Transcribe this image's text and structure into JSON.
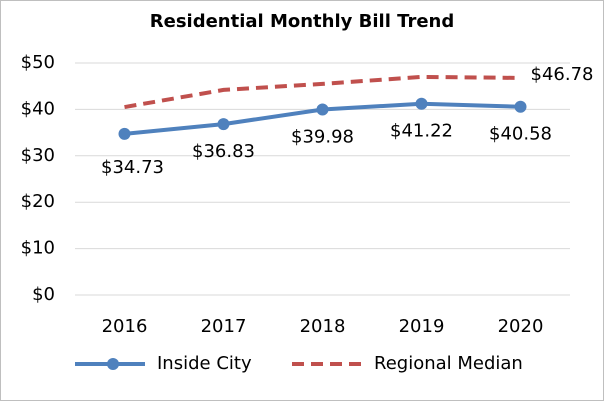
{
  "chart_data": {
    "type": "line",
    "title": "Residential Monthly Bill Trend",
    "categories": [
      "2016",
      "2017",
      "2018",
      "2019",
      "2020"
    ],
    "series": [
      {
        "name": "Inside City",
        "color": "#4f81bd",
        "values": [
          34.73,
          36.83,
          39.98,
          41.22,
          40.58
        ],
        "value_labels": [
          "$34.73",
          "$36.83",
          "$39.98",
          "$41.22",
          "$40.58"
        ],
        "marker": true,
        "dashed": false
      },
      {
        "name": "Regional Median",
        "color": "#c0504d",
        "values": [
          40.5,
          44.2,
          45.5,
          47.0,
          46.78
        ],
        "value_labels": [
          null,
          null,
          null,
          null,
          "$46.78"
        ],
        "marker": false,
        "dashed": true
      }
    ],
    "ylim": [
      0,
      50
    ],
    "yticks": [
      {
        "value": 0,
        "label": "$0"
      },
      {
        "value": 10,
        "label": "$10"
      },
      {
        "value": 20,
        "label": "$20"
      },
      {
        "value": 30,
        "label": "$30"
      },
      {
        "value": 40,
        "label": "$40"
      },
      {
        "value": 50,
        "label": "$50"
      }
    ],
    "grid": true,
    "legend": "bottom"
  }
}
